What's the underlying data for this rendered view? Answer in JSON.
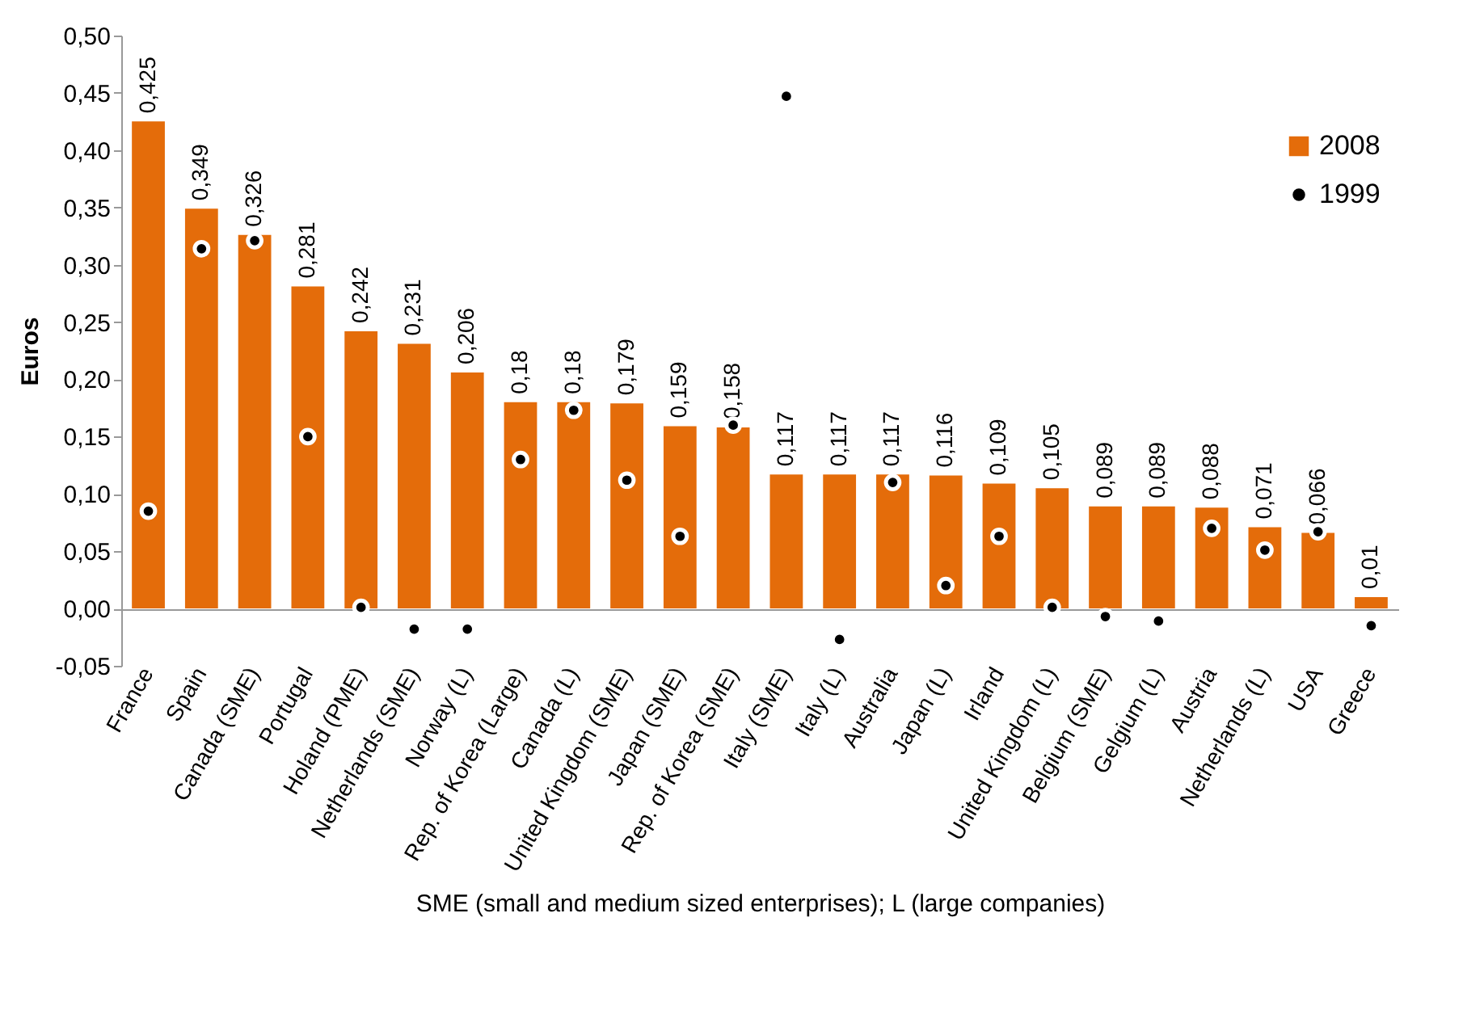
{
  "chart_data": {
    "type": "bar",
    "xlabel": "SME (small and medium sized enterprises); L (large companies)",
    "ylabel": "Euros",
    "categories": [
      "France",
      "Spain",
      "Canada (SME)",
      "Portugal",
      "Holand (PME)",
      "Netherlands (SME)",
      "Norway (L)",
      "Rep. of Korea (Large)",
      "Canada (L)",
      "United Kingdom (SME)",
      "Japan (SME)",
      "Rep. of Korea (SME)",
      "Italy (SME)",
      "Italy (L)",
      "Australia",
      "Japan (L)",
      "Irland",
      "United Kingdom (L)",
      "Belgium (SME)",
      "Gelgium (L)",
      "Austria",
      "Netherlands (L)",
      "USA",
      "Greece"
    ],
    "series": [
      {
        "name": "2008",
        "type": "bar",
        "color": "#e46c0a",
        "values": [
          0.425,
          0.349,
          0.326,
          0.281,
          0.242,
          0.231,
          0.206,
          0.18,
          0.18,
          0.179,
          0.159,
          0.158,
          0.117,
          0.117,
          0.117,
          0.116,
          0.109,
          0.105,
          0.089,
          0.089,
          0.088,
          0.071,
          0.066,
          0.01
        ],
        "value_labels": [
          "0,425",
          "0,349",
          "0,326",
          "0,281",
          "0,242",
          "0,231",
          "0,206",
          "0,18",
          "0,18",
          "0,179",
          "0,159",
          "0,158",
          "0,117",
          "0,117",
          "0,117",
          "0,116",
          "0,109",
          "0,105",
          "0,089",
          "0,089",
          "0,088",
          "0,071",
          "0,066",
          "0,01"
        ]
      },
      {
        "name": "1999",
        "type": "scatter",
        "color": "#000000",
        "values": [
          0.085,
          0.314,
          0.321,
          0.15,
          0.001,
          -0.018,
          -0.018,
          0.13,
          0.173,
          0.112,
          0.063,
          0.16,
          0.447,
          -0.027,
          0.11,
          0.02,
          0.063,
          0.001,
          -0.007,
          -0.011,
          0.07,
          0.051,
          0.067,
          -0.015
        ]
      }
    ],
    "marker": "circle",
    "ylim": [
      -0.05,
      0.5
    ],
    "yticks": [
      {
        "value": -0.05,
        "label": "-0,05"
      },
      {
        "value": 0,
        "label": "0,00"
      },
      {
        "value": 0.05,
        "label": "0,05"
      },
      {
        "value": 0.1,
        "label": "0,10"
      },
      {
        "value": 0.15,
        "label": "0,15"
      },
      {
        "value": 0.2,
        "label": "0,20"
      },
      {
        "value": 0.25,
        "label": "0,25"
      },
      {
        "value": 0.3,
        "label": "0,30"
      },
      {
        "value": 0.35,
        "label": "0,35"
      },
      {
        "value": 0.4,
        "label": "0,40"
      },
      {
        "value": 0.45,
        "label": "0,45"
      },
      {
        "value": 0.5,
        "label": "0,50"
      }
    ],
    "grid": false,
    "legend": "top right"
  }
}
